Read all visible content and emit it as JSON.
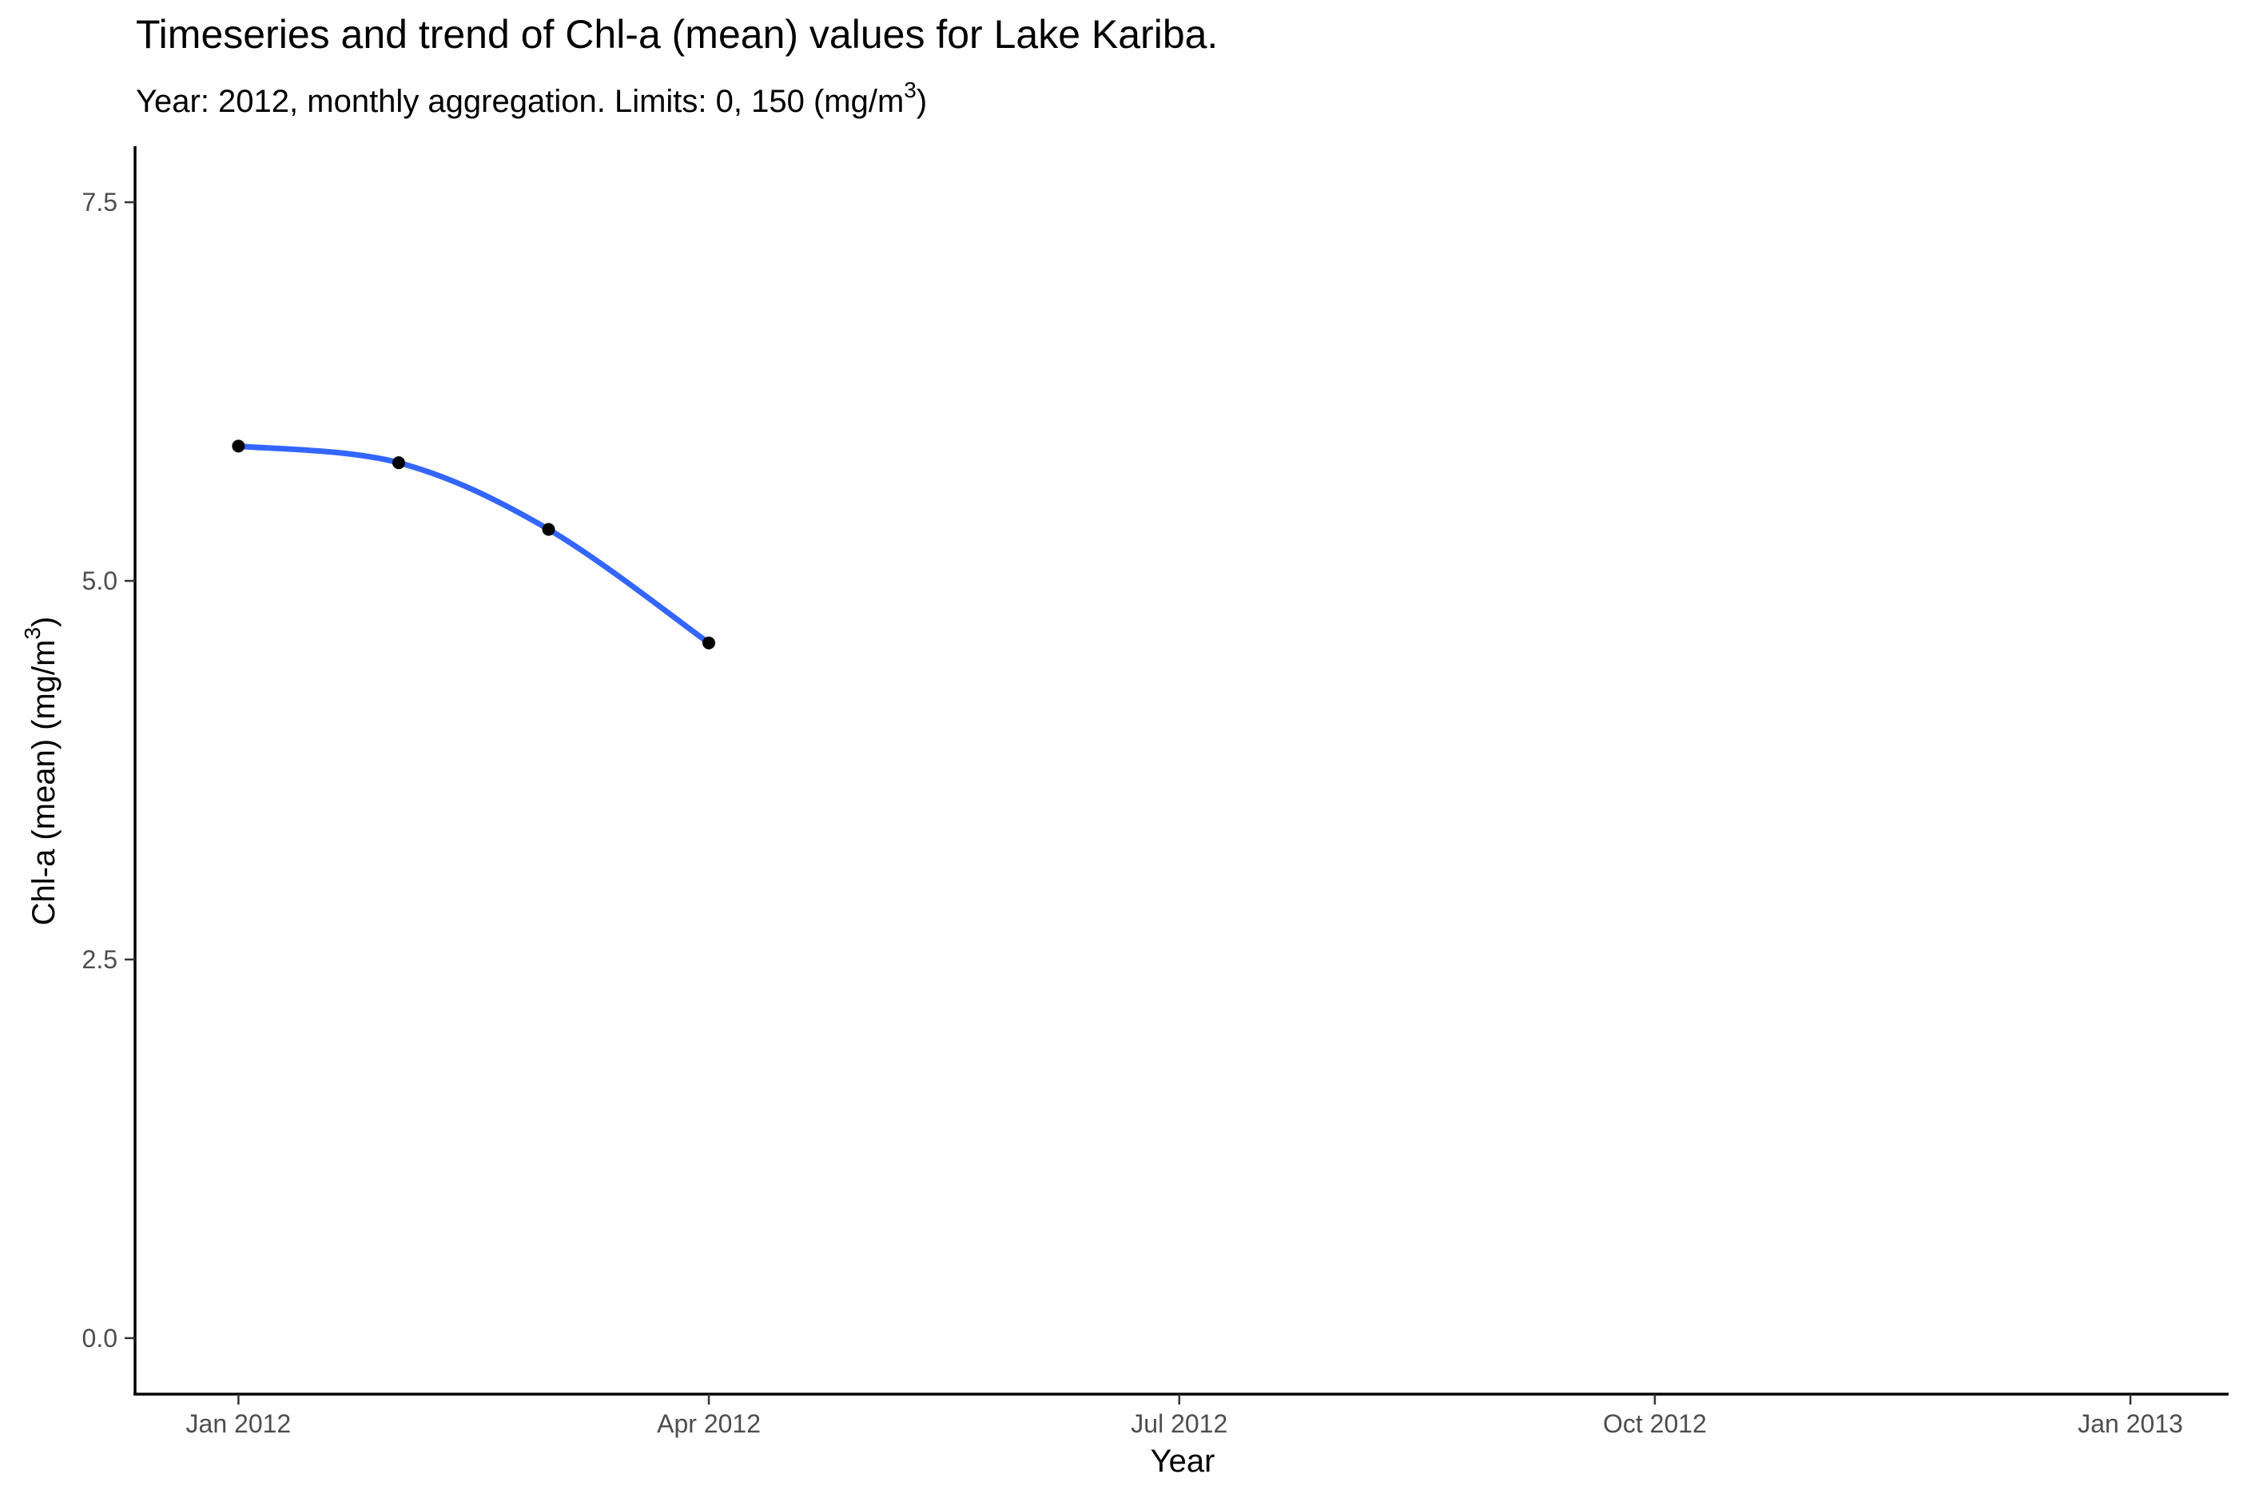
{
  "chart_data": {
    "type": "line",
    "title": "Timeseries and trend of Chl-a (mean) values for Lake Kariba.",
    "subtitle": {
      "text": "Year: 2012, monthly aggregation. Limits: 0, 150 (mg/m",
      "superscript": "3",
      "close": ")"
    },
    "xlabel": "Year",
    "ylabel": {
      "text": "Chl-a (mean) (mg/m",
      "superscript": "3",
      "close": ")"
    },
    "x_ticks": [
      {
        "date": "2012-01-01",
        "label": "Jan 2012"
      },
      {
        "date": "2012-04-01",
        "label": "Apr 2012"
      },
      {
        "date": "2012-07-01",
        "label": "Jul 2012"
      },
      {
        "date": "2012-10-01",
        "label": "Oct 2012"
      },
      {
        "date": "2013-01-01",
        "label": "Jan 2013"
      }
    ],
    "y_ticks": [
      {
        "value": 0.0,
        "label": "0.0"
      },
      {
        "value": 2.5,
        "label": "2.5"
      },
      {
        "value": 5.0,
        "label": "5.0"
      },
      {
        "value": 7.5,
        "label": "7.5"
      }
    ],
    "xlim": [
      "2011-12-12",
      "2013-01-20"
    ],
    "ylim": [
      -0.37,
      7.87
    ],
    "grid": false,
    "series": [
      {
        "name": "Chl-a (mean)",
        "color": "#000000",
        "points": [
          {
            "date": "2012-01-01",
            "value": 5.89
          },
          {
            "date": "2012-02-01",
            "value": 5.78
          },
          {
            "date": "2012-03-01",
            "value": 5.34
          },
          {
            "date": "2012-04-01",
            "value": 4.59
          }
        ]
      },
      {
        "name": "trend",
        "color": "#3366ff",
        "points": [
          {
            "date": "2012-01-01",
            "value": 5.89
          },
          {
            "date": "2012-02-01",
            "value": 5.78
          },
          {
            "date": "2012-03-01",
            "value": 5.34
          },
          {
            "date": "2012-04-01",
            "value": 4.59
          }
        ]
      }
    ]
  }
}
